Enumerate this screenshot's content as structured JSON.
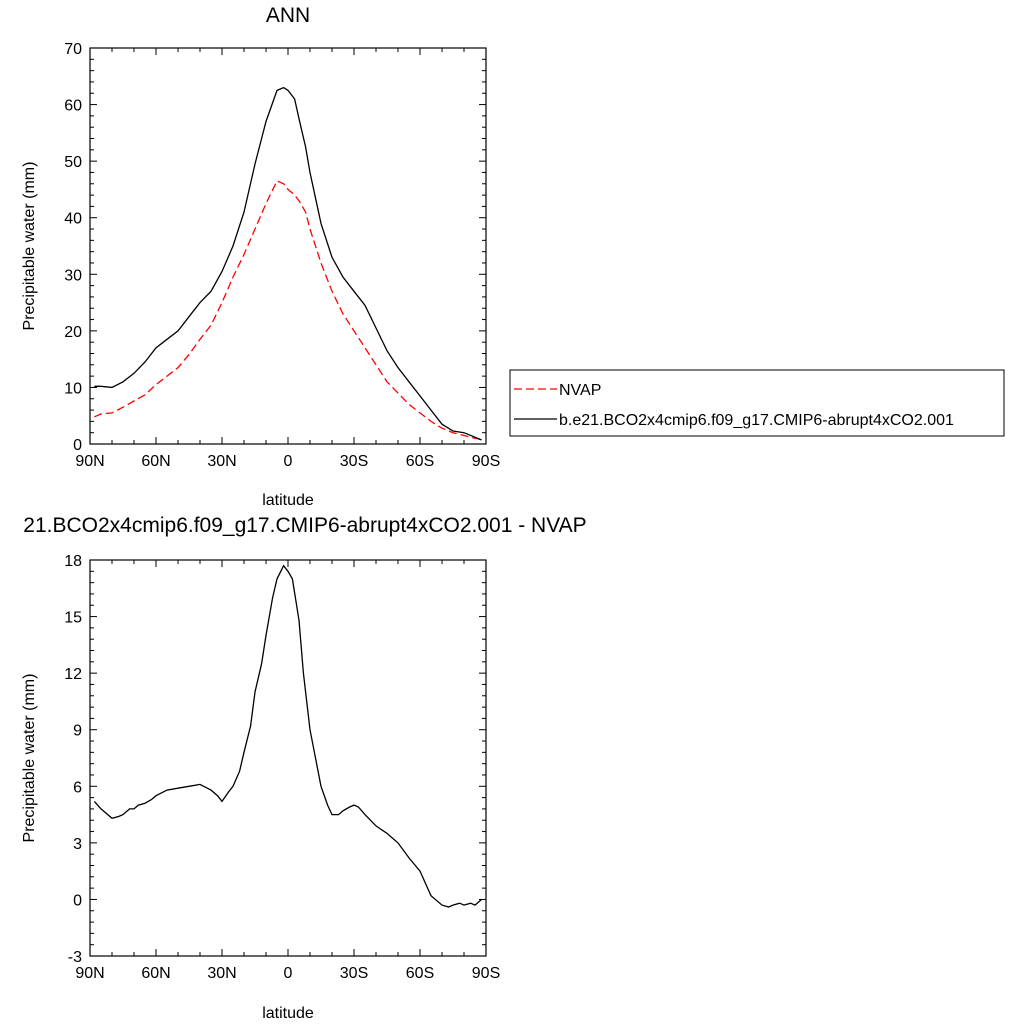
{
  "chart_data": [
    {
      "type": "line",
      "title": "ANN",
      "xlabel": "latitude",
      "ylabel": "Precipitable water (mm)",
      "xlim": [
        90,
        -90
      ],
      "ylim": [
        0,
        70
      ],
      "xticks": [
        90,
        60,
        30,
        0,
        -30,
        -60,
        -90
      ],
      "xtick_labels": [
        "90N",
        "60N",
        "30N",
        "0",
        "30S",
        "60S",
        "90S"
      ],
      "yticks": [
        0,
        10,
        20,
        30,
        40,
        50,
        60,
        70
      ],
      "ytick_labels": [
        "0",
        "10",
        "20",
        "30",
        "40",
        "50",
        "60",
        "70"
      ],
      "legend_position": "right",
      "series": [
        {
          "name": "NVAP",
          "color": "#ff0000",
          "dash": "dashed",
          "x": [
            88,
            85,
            80,
            75,
            70,
            65,
            60,
            55,
            50,
            45,
            40,
            35,
            30,
            25,
            20,
            15,
            10,
            5,
            2,
            0,
            -3,
            -5,
            -8,
            -10,
            -15,
            -20,
            -25,
            -30,
            -35,
            -40,
            -45,
            -50,
            -55,
            -60,
            -65,
            -70,
            -75,
            -80,
            -85,
            -88
          ],
          "y": [
            4.8,
            5.3,
            5.5,
            6.5,
            7.6,
            8.7,
            10.5,
            12.0,
            13.5,
            15.8,
            18.5,
            21.0,
            25.0,
            29.5,
            33.5,
            38.0,
            42.5,
            46.5,
            46.0,
            45.0,
            44.0,
            43.0,
            41.0,
            38.0,
            32.0,
            27.0,
            23.0,
            20.0,
            17.0,
            14.0,
            11.0,
            9.0,
            7.0,
            5.5,
            4.0,
            2.8,
            2.0,
            1.5,
            1.0,
            0.8
          ]
        },
        {
          "name": "b.e21.BCO2x4cmip6.f09_g17.CMIP6-abrupt4xCO2.001",
          "color": "#000000",
          "dash": "solid",
          "x": [
            88,
            85,
            80,
            75,
            70,
            65,
            60,
            55,
            50,
            45,
            40,
            35,
            30,
            25,
            20,
            15,
            10,
            5,
            2,
            0,
            -3,
            -5,
            -8,
            -10,
            -15,
            -20,
            -25,
            -30,
            -35,
            -40,
            -45,
            -50,
            -55,
            -60,
            -65,
            -70,
            -75,
            -80,
            -85,
            -88
          ],
          "y": [
            10.2,
            10.2,
            10.0,
            11.0,
            12.5,
            14.5,
            17.0,
            18.5,
            20.0,
            22.5,
            25.0,
            27.0,
            30.5,
            35.0,
            41.0,
            49.5,
            57.0,
            62.5,
            63.0,
            62.5,
            61.0,
            57.5,
            52.5,
            48.0,
            39.0,
            33.0,
            29.5,
            27.0,
            24.5,
            20.5,
            16.5,
            13.5,
            11.0,
            8.5,
            6.0,
            3.5,
            2.3,
            2.0,
            1.2,
            0.7
          ]
        }
      ]
    },
    {
      "type": "line",
      "title": "21.BCO2x4cmip6.f09_g17.CMIP6-abrupt4xCO2.001 - NVAP",
      "xlabel": "latitude",
      "ylabel": "Precipitable water (mm)",
      "xlim": [
        90,
        -90
      ],
      "ylim": [
        -3,
        18
      ],
      "xticks": [
        90,
        60,
        30,
        0,
        -30,
        -60,
        -90
      ],
      "xtick_labels": [
        "90N",
        "60N",
        "30N",
        "0",
        "30S",
        "60S",
        "90S"
      ],
      "yticks": [
        -3,
        0,
        3,
        6,
        9,
        12,
        15,
        18
      ],
      "ytick_labels": [
        "-3",
        "0",
        "3",
        "6",
        "9",
        "12",
        "15",
        "18"
      ],
      "series": [
        {
          "color": "#000000",
          "dash": "solid",
          "x": [
            88,
            85,
            80,
            77,
            75,
            72,
            70,
            68,
            65,
            62,
            60,
            55,
            50,
            45,
            40,
            35,
            32,
            30,
            27,
            25,
            22,
            20,
            17,
            15,
            12,
            10,
            7,
            5,
            2,
            0,
            -2,
            -5,
            -7,
            -10,
            -15,
            -18,
            -20,
            -23,
            -25,
            -28,
            -30,
            -32,
            -35,
            -40,
            -45,
            -50,
            -55,
            -60,
            -65,
            -70,
            -73,
            -75,
            -78,
            -80,
            -83,
            -85,
            -88
          ],
          "y": [
            5.2,
            4.8,
            4.3,
            4.4,
            4.5,
            4.8,
            4.8,
            5.0,
            5.1,
            5.3,
            5.5,
            5.8,
            5.9,
            6.0,
            6.1,
            5.8,
            5.5,
            5.2,
            5.7,
            6.0,
            6.8,
            7.8,
            9.2,
            11.0,
            12.5,
            14.0,
            16.0,
            17.0,
            17.7,
            17.4,
            17.0,
            14.8,
            12.0,
            9.0,
            6.0,
            5.0,
            4.5,
            4.5,
            4.7,
            4.9,
            5.0,
            4.9,
            4.5,
            3.9,
            3.5,
            3.0,
            2.2,
            1.5,
            0.2,
            -0.3,
            -0.4,
            -0.3,
            -0.2,
            -0.3,
            -0.2,
            -0.3,
            0.0
          ]
        }
      ]
    }
  ]
}
